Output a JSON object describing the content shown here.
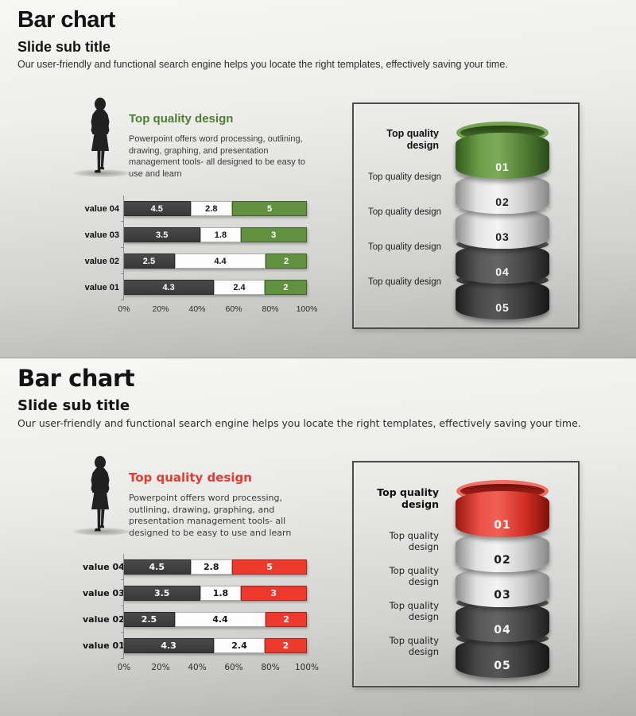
{
  "slides": [
    {
      "title": "Bar chart",
      "subtitle": "Slide  sub  title",
      "description": "Our user-friendly and functional search engine helps you locate the right templates, effectively saving your time.",
      "feature": {
        "heading": "Top quality design",
        "body": "Powerpoint offers word processing, outlining, drawing, graphing, and presentation management tools- all designed to be easy to use and learn",
        "accent_color": "#4e7e33"
      },
      "chart": {
        "rows": [
          {
            "label": "value 04",
            "values": [
              4.5,
              2.8,
              5
            ]
          },
          {
            "label": "value 03",
            "values": [
              3.5,
              1.8,
              3
            ]
          },
          {
            "label": "value 02",
            "values": [
              2.5,
              4.4,
              2
            ]
          },
          {
            "label": "value 01",
            "values": [
              4.3,
              2.4,
              2
            ]
          }
        ],
        "ticks": [
          "0%",
          "20%",
          "40%",
          "60%",
          "80%",
          "100%"
        ],
        "segment_colors": [
          "#3f3f3f",
          "#ffffff",
          "#61913f"
        ]
      },
      "panel": {
        "labels": [
          {
            "text": "Top quality design",
            "bold": true
          },
          {
            "text": "Top quality design",
            "bold": false
          },
          {
            "text": "Top quality design",
            "bold": false
          },
          {
            "text": "Top quality design",
            "bold": false
          },
          {
            "text": "Top quality design",
            "bold": false
          }
        ],
        "cylinders": [
          {
            "num": "01",
            "variant": "accent"
          },
          {
            "num": "02",
            "variant": "silver"
          },
          {
            "num": "03",
            "variant": "silver"
          },
          {
            "num": "04",
            "variant": "dark"
          },
          {
            "num": "05",
            "variant": "darker"
          }
        ]
      }
    },
    {
      "title": "Bar chart",
      "subtitle": "Slide sub title",
      "description": "Our user-friendly and functional search engine helps you locate the right templates, effectively saving your time.",
      "feature": {
        "heading": "Top quality design",
        "body": "Powerpoint offers word processing, outlining, drawing, graphing, and presentation management tools- all designed to be easy to use and learn",
        "accent_color": "#e8392e"
      },
      "chart": {
        "rows": [
          {
            "label": "value 04",
            "values": [
              4.5,
              2.8,
              5
            ]
          },
          {
            "label": "value 03",
            "values": [
              3.5,
              1.8,
              3
            ]
          },
          {
            "label": "value 02",
            "values": [
              2.5,
              4.4,
              2
            ]
          },
          {
            "label": "value 01",
            "values": [
              4.3,
              2.4,
              2
            ]
          }
        ],
        "ticks": [
          "0%",
          "20%",
          "40%",
          "60%",
          "80%",
          "100%"
        ],
        "segment_colors": [
          "#3f3f3f",
          "#ffffff",
          "#ee3a2e"
        ]
      },
      "panel": {
        "labels": [
          {
            "text": "Top quality design",
            "bold": true
          },
          {
            "text": "Top quality design",
            "bold": false
          },
          {
            "text": "Top quality design",
            "bold": false
          },
          {
            "text": "Top quality design",
            "bold": false
          },
          {
            "text": "Top quality design",
            "bold": false
          }
        ],
        "cylinders": [
          {
            "num": "01",
            "variant": "accent"
          },
          {
            "num": "02",
            "variant": "silver"
          },
          {
            "num": "03",
            "variant": "silver"
          },
          {
            "num": "04",
            "variant": "dark"
          },
          {
            "num": "05",
            "variant": "darker"
          }
        ]
      }
    }
  ],
  "chart_data": [
    {
      "type": "bar",
      "orientation": "horizontal",
      "stacked": true,
      "normalized_to_100_percent": true,
      "title": "Bar chart",
      "subtitle": "Slide  sub  title",
      "categories": [
        "value 04",
        "value 03",
        "value 02",
        "value 01"
      ],
      "series": [
        {
          "name": "segment-dark-gray",
          "color": "#3f3f3f",
          "values": [
            4.5,
            3.5,
            2.5,
            4.3
          ]
        },
        {
          "name": "segment-white",
          "color": "#ffffff",
          "values": [
            2.8,
            1.8,
            4.4,
            2.4
          ]
        },
        {
          "name": "segment-green",
          "color": "#61913f",
          "values": [
            5,
            3,
            2,
            2
          ]
        }
      ],
      "x_ticks": [
        "0%",
        "20%",
        "40%",
        "60%",
        "80%",
        "100%"
      ],
      "xlim": [
        0,
        100
      ],
      "grid": false,
      "legend": false
    },
    {
      "type": "bar",
      "orientation": "horizontal",
      "stacked": true,
      "normalized_to_100_percent": true,
      "title": "Bar chart",
      "subtitle": "Slide sub title",
      "categories": [
        "value 04",
        "value 03",
        "value 02",
        "value 01"
      ],
      "series": [
        {
          "name": "segment-dark-gray",
          "color": "#3f3f3f",
          "values": [
            4.5,
            3.5,
            2.5,
            4.3
          ]
        },
        {
          "name": "segment-white",
          "color": "#ffffff",
          "values": [
            2.8,
            1.8,
            4.4,
            2.4
          ]
        },
        {
          "name": "segment-red",
          "color": "#ee3a2e",
          "values": [
            5,
            3,
            2,
            2
          ]
        }
      ],
      "x_ticks": [
        "0%",
        "20%",
        "40%",
        "60%",
        "80%",
        "100%"
      ],
      "xlim": [
        0,
        100
      ],
      "grid": false,
      "legend": false
    }
  ]
}
